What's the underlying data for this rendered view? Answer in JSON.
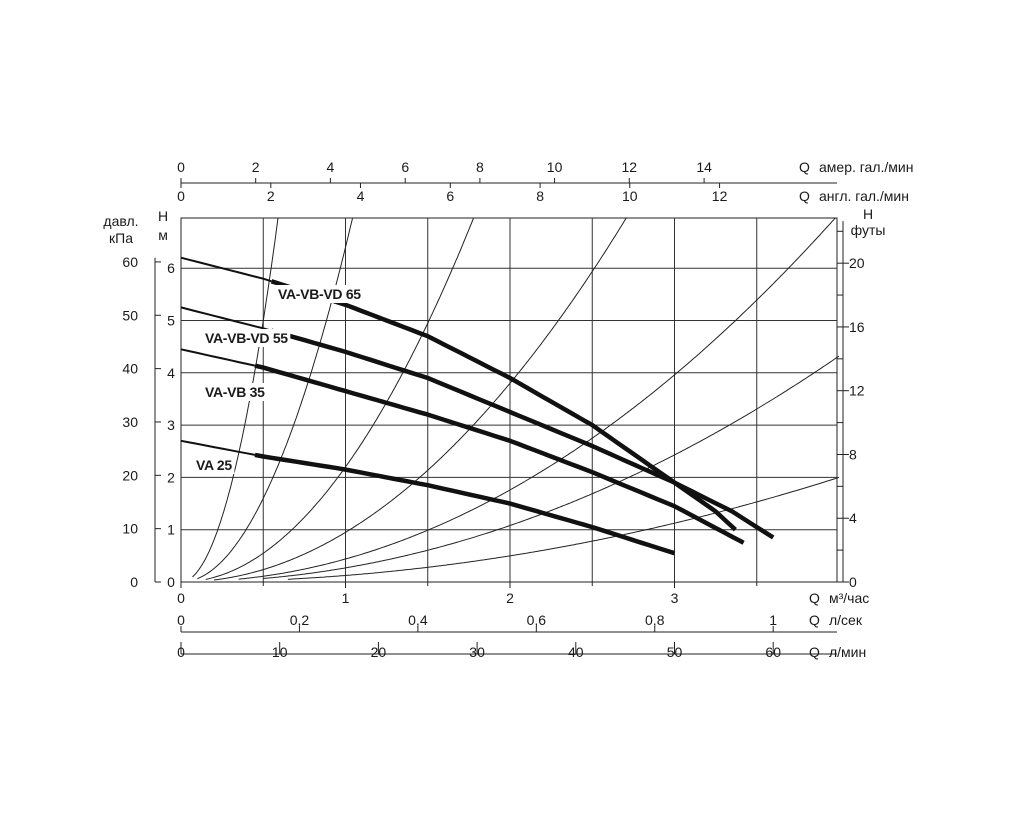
{
  "chart_data": {
    "type": "line",
    "x_axes": [
      {
        "position": "top",
        "label_letter": "Q",
        "label_unit": "амер. гал./мин",
        "ticks": [
          "0",
          "2",
          "4",
          "6",
          "8",
          "10",
          "12",
          "14"
        ],
        "tick_values_m3h": [
          0,
          0.454,
          0.908,
          1.363,
          1.817,
          2.271,
          2.725,
          3.18
        ]
      },
      {
        "position": "top",
        "label_letter": "Q",
        "label_unit": "англ. гал./мин",
        "ticks": [
          "0",
          "2",
          "4",
          "6",
          "8",
          "10",
          "12"
        ],
        "tick_values_m3h": [
          0,
          0.546,
          1.091,
          1.637,
          2.183,
          2.728,
          3.274
        ]
      },
      {
        "position": "bottom",
        "label_letter": "Q",
        "label_unit": "м³/час",
        "ticks": [
          "0",
          "1",
          "2",
          "3"
        ],
        "tick_values_m3h": [
          0,
          1,
          2,
          3
        ]
      },
      {
        "position": "bottom",
        "label_letter": "Q",
        "label_unit": "л/сек",
        "ticks": [
          "0",
          "0,2",
          "0,4",
          "0,6",
          "0,8",
          "1"
        ],
        "tick_values_m3h": [
          0,
          0.72,
          1.44,
          2.16,
          2.88,
          3.6
        ]
      },
      {
        "position": "bottom",
        "label_letter": "Q",
        "label_unit": "л/мин",
        "ticks": [
          "0",
          "10",
          "20",
          "30",
          "40",
          "50",
          "60"
        ],
        "tick_values_m3h": [
          0,
          0.6,
          1.2,
          1.8,
          2.4,
          3.0,
          3.6
        ]
      }
    ],
    "y_axes": [
      {
        "position": "left-outer",
        "label_line1": "давл.",
        "label_line2": "кПа",
        "ticks": [
          "0",
          "10",
          "20",
          "30",
          "40",
          "50",
          "60"
        ],
        "tick_values_m": [
          0,
          1.02,
          2.04,
          3.06,
          4.08,
          5.1,
          6.12
        ]
      },
      {
        "position": "left-inner",
        "label_line1": "H",
        "label_line2": "м",
        "ticks": [
          "0",
          "1",
          "2",
          "3",
          "4",
          "5",
          "6"
        ],
        "tick_values_m": [
          0,
          1,
          2,
          3,
          4,
          5,
          6
        ]
      },
      {
        "position": "right",
        "label_line1": "H",
        "label_line2": "футы",
        "ticks": [
          "0",
          "4",
          "8",
          "12",
          "16",
          "20"
        ],
        "tick_values_m": [
          0,
          1.219,
          2.438,
          3.658,
          4.877,
          6.096
        ]
      }
    ],
    "xlim_m3h": [
      0,
      4
    ],
    "ylim_m": [
      0,
      7
    ],
    "grid": true,
    "series": [
      {
        "name": "VA-VB-VD 65",
        "x_m3h": [
          0,
          0.5,
          1.0,
          1.5,
          2.0,
          2.5,
          3.0,
          3.25,
          3.37
        ],
        "y_m": [
          6.2,
          5.8,
          5.3,
          4.7,
          3.9,
          3.0,
          1.9,
          1.35,
          1.0
        ]
      },
      {
        "name": "VA-VB-VD 55",
        "x_m3h": [
          0,
          0.5,
          1.0,
          1.5,
          2.0,
          2.5,
          3.0,
          3.35,
          3.6
        ],
        "y_m": [
          5.25,
          4.85,
          4.4,
          3.9,
          3.25,
          2.6,
          1.9,
          1.35,
          0.85
        ]
      },
      {
        "name": "VA-VB 35",
        "x_m3h": [
          0,
          0.5,
          1.0,
          1.5,
          2.0,
          2.5,
          3.0,
          3.42
        ],
        "y_m": [
          4.45,
          4.1,
          3.65,
          3.2,
          2.7,
          2.1,
          1.45,
          0.75
        ]
      },
      {
        "name": "VA 25",
        "x_m3h": [
          0,
          0.5,
          1.0,
          1.5,
          2.0,
          2.5,
          3.0
        ],
        "y_m": [
          2.7,
          2.4,
          2.15,
          1.85,
          1.5,
          1.05,
          0.55
        ]
      }
    ],
    "system_curves": [
      {
        "k": 20.0,
        "x_start_m3h": 0.07
      },
      {
        "k": 6.4,
        "x_start_m3h": 0.1
      },
      {
        "k": 2.2,
        "x_start_m3h": 0.15
      },
      {
        "k": 0.95,
        "x_start_m3h": 0.2
      },
      {
        "k": 0.44,
        "x_start_m3h": 0.35
      },
      {
        "k": 0.27,
        "x_start_m3h": 0.5
      },
      {
        "k": 0.125,
        "x_start_m3h": 0.65
      }
    ]
  }
}
